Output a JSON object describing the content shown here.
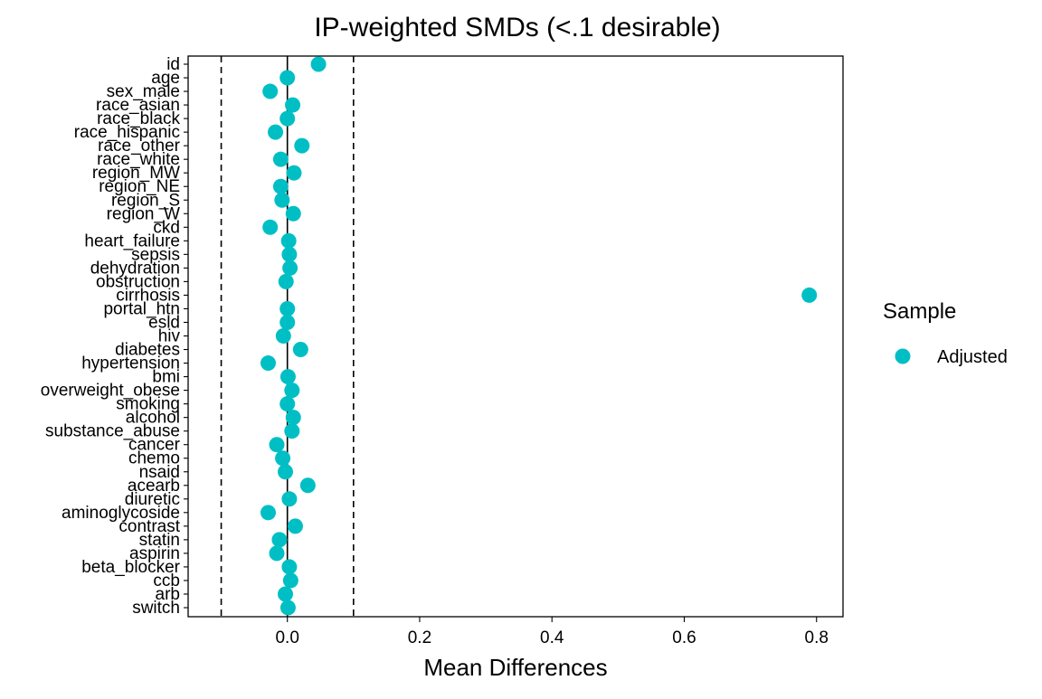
{
  "chart_data": {
    "type": "scatter",
    "title": "IP-weighted SMDs (<.1 desirable)",
    "xlabel": "Mean Differences",
    "ylabel": "",
    "xlim": [
      -0.15,
      0.84
    ],
    "xticks": [
      0.0,
      0.2,
      0.4,
      0.6,
      0.8
    ],
    "xtick_labels": [
      "0.0",
      "0.2",
      "0.4",
      "0.6",
      "0.8"
    ],
    "reference_lines": [
      {
        "x": 0.0,
        "style": "solid"
      },
      {
        "x": -0.1,
        "style": "dashed"
      },
      {
        "x": 0.1,
        "style": "dashed"
      }
    ],
    "grid": false,
    "legend": {
      "title": "Sample",
      "position": "right",
      "entries": [
        {
          "label": "Adjusted",
          "color": "#00BFC4"
        }
      ]
    },
    "series": [
      {
        "name": "Adjusted",
        "color": "#00BFC4",
        "points": [
          {
            "label": "id",
            "x": 0.047
          },
          {
            "label": "age",
            "x": 0.0
          },
          {
            "label": "sex_male",
            "x": -0.026
          },
          {
            "label": "race_asian",
            "x": 0.008
          },
          {
            "label": "race_black",
            "x": 0.0
          },
          {
            "label": "race_hispanic",
            "x": -0.018
          },
          {
            "label": "race_other",
            "x": 0.022
          },
          {
            "label": "race_white",
            "x": -0.01
          },
          {
            "label": "region_MW",
            "x": 0.01
          },
          {
            "label": "region_NE",
            "x": -0.01
          },
          {
            "label": "region_S",
            "x": -0.008
          },
          {
            "label": "region_W",
            "x": 0.009
          },
          {
            "label": "ckd",
            "x": -0.026
          },
          {
            "label": "heart_failure",
            "x": 0.002
          },
          {
            "label": "sepsis",
            "x": 0.003
          },
          {
            "label": "dehydration",
            "x": 0.004
          },
          {
            "label": "obstruction",
            "x": -0.002
          },
          {
            "label": "cirrhosis",
            "x": 0.789
          },
          {
            "label": "portal_htn",
            "x": 0.0
          },
          {
            "label": "esld",
            "x": 0.0
          },
          {
            "label": "hiv",
            "x": -0.006
          },
          {
            "label": "diabetes",
            "x": 0.02
          },
          {
            "label": "hypertension",
            "x": -0.029
          },
          {
            "label": "bmi",
            "x": 0.001
          },
          {
            "label": "overweight_obese",
            "x": 0.007
          },
          {
            "label": "smoking",
            "x": 0.0
          },
          {
            "label": "alcohol",
            "x": 0.009
          },
          {
            "label": "substance_abuse",
            "x": 0.007
          },
          {
            "label": "cancer",
            "x": -0.016
          },
          {
            "label": "chemo",
            "x": -0.007
          },
          {
            "label": "nsaid",
            "x": -0.003
          },
          {
            "label": "acearb",
            "x": 0.031
          },
          {
            "label": "diuretic",
            "x": 0.003
          },
          {
            "label": "aminoglycoside",
            "x": -0.029
          },
          {
            "label": "contrast",
            "x": 0.012
          },
          {
            "label": "statin",
            "x": -0.012
          },
          {
            "label": "aspirin",
            "x": -0.016
          },
          {
            "label": "beta_blocker",
            "x": 0.003
          },
          {
            "label": "ccb",
            "x": 0.005
          },
          {
            "label": "arb",
            "x": -0.003
          },
          {
            "label": "switch",
            "x": 0.001
          }
        ]
      }
    ]
  }
}
